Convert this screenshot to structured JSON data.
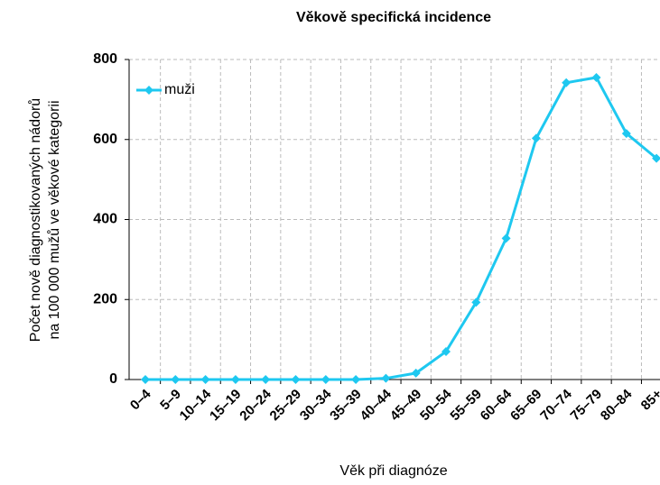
{
  "chart_data": {
    "type": "line",
    "title": "Věkově specifická incidence",
    "xlabel": "Věk při diagnóze",
    "ylabel": [
      "Počet nově diagnostikovaných nádorů",
      "na 100 000 mužů ve věkové kategorii"
    ],
    "categories": [
      "0–4",
      "5–9",
      "10–14",
      "15–19",
      "20–24",
      "25–29",
      "30–34",
      "35–39",
      "40–44",
      "45–49",
      "50–54",
      "55–59",
      "60–64",
      "65–69",
      "70–74",
      "75–79",
      "80–84",
      "85+"
    ],
    "series": [
      {
        "name": "muži",
        "color": "#1ec8f0",
        "values": [
          0,
          0,
          0,
          0,
          0,
          0,
          0,
          0,
          3,
          16,
          70,
          193,
          353,
          603,
          742,
          755,
          615,
          553
        ]
      }
    ],
    "ylim": [
      0,
      800
    ],
    "yticks": [
      0,
      200,
      400,
      600,
      800
    ],
    "grid": true,
    "legend": "upper left"
  }
}
